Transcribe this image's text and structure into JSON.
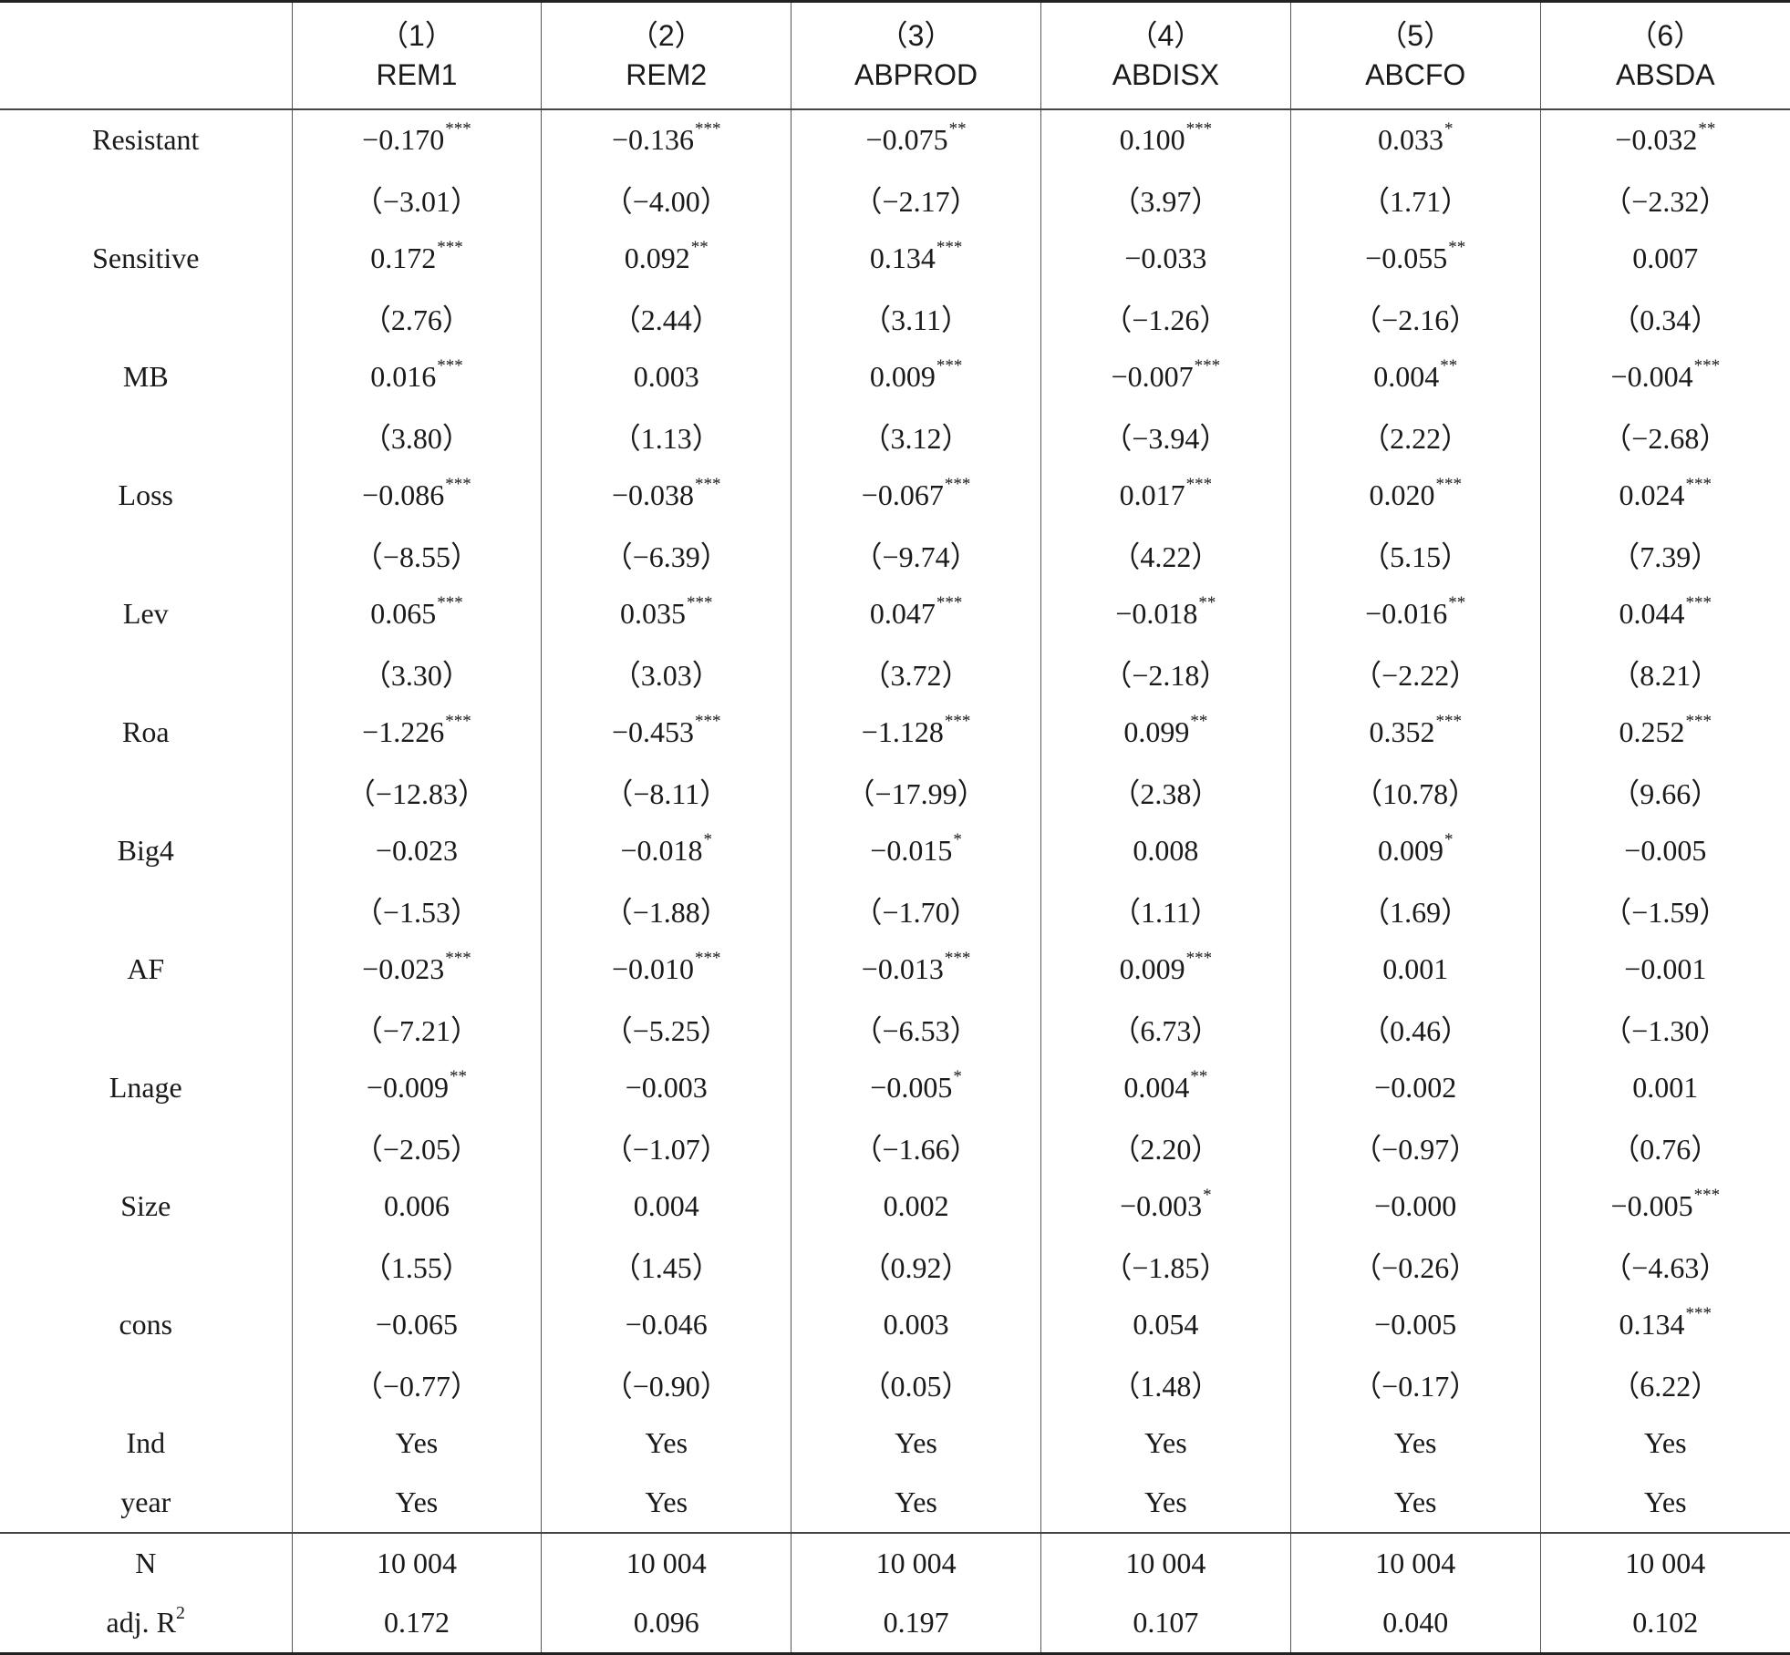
{
  "columns": [
    {
      "number": "（1）",
      "name": "REM1"
    },
    {
      "number": "（2）",
      "name": "REM2"
    },
    {
      "number": "（3）",
      "name": "ABPROD"
    },
    {
      "number": "（4）",
      "name": "ABDISX"
    },
    {
      "number": "（5）",
      "name": "ABCFO"
    },
    {
      "number": "（6）",
      "name": "ABSDA"
    }
  ],
  "rows": [
    {
      "label": "Resistant",
      "values": [
        {
          "v": "−0.170",
          "s": "***"
        },
        {
          "v": "−0.136",
          "s": "***"
        },
        {
          "v": "−0.075",
          "s": "**"
        },
        {
          "v": "0.100",
          "s": "***"
        },
        {
          "v": "0.033",
          "s": "*"
        },
        {
          "v": "−0.032",
          "s": "**"
        }
      ]
    },
    {
      "label": "",
      "values": [
        {
          "v": "（−3.01）"
        },
        {
          "v": "（−4.00）"
        },
        {
          "v": "（−2.17）"
        },
        {
          "v": "（3.97）"
        },
        {
          "v": "（1.71）"
        },
        {
          "v": "（−2.32）"
        }
      ]
    },
    {
      "label": "Sensitive",
      "values": [
        {
          "v": "0.172",
          "s": "***"
        },
        {
          "v": "0.092",
          "s": "**"
        },
        {
          "v": "0.134",
          "s": "***"
        },
        {
          "v": "−0.033"
        },
        {
          "v": "−0.055",
          "s": "**"
        },
        {
          "v": "0.007"
        }
      ]
    },
    {
      "label": "",
      "values": [
        {
          "v": "（2.76）"
        },
        {
          "v": "（2.44）"
        },
        {
          "v": "（3.11）"
        },
        {
          "v": "（−1.26）"
        },
        {
          "v": "（−2.16）"
        },
        {
          "v": "（0.34）"
        }
      ]
    },
    {
      "label": "MB",
      "values": [
        {
          "v": "0.016",
          "s": "***"
        },
        {
          "v": "0.003"
        },
        {
          "v": "0.009",
          "s": "***"
        },
        {
          "v": "−0.007",
          "s": "***"
        },
        {
          "v": "0.004",
          "s": "**"
        },
        {
          "v": "−0.004",
          "s": "***"
        }
      ]
    },
    {
      "label": "",
      "values": [
        {
          "v": "（3.80）"
        },
        {
          "v": "（1.13）"
        },
        {
          "v": "（3.12）"
        },
        {
          "v": "（−3.94）"
        },
        {
          "v": "（2.22）"
        },
        {
          "v": "（−2.68）"
        }
      ]
    },
    {
      "label": "Loss",
      "values": [
        {
          "v": "−0.086",
          "s": "***"
        },
        {
          "v": "−0.038",
          "s": "***"
        },
        {
          "v": "−0.067",
          "s": "***"
        },
        {
          "v": "0.017",
          "s": "***"
        },
        {
          "v": "0.020",
          "s": "***"
        },
        {
          "v": "0.024",
          "s": "***"
        }
      ]
    },
    {
      "label": "",
      "values": [
        {
          "v": "（−8.55）"
        },
        {
          "v": "（−6.39）"
        },
        {
          "v": "（−9.74）"
        },
        {
          "v": "（4.22）"
        },
        {
          "v": "（5.15）"
        },
        {
          "v": "（7.39）"
        }
      ]
    },
    {
      "label": "Lev",
      "values": [
        {
          "v": "0.065",
          "s": "***"
        },
        {
          "v": "0.035",
          "s": "***"
        },
        {
          "v": "0.047",
          "s": "***"
        },
        {
          "v": "−0.018",
          "s": "**"
        },
        {
          "v": "−0.016",
          "s": "**"
        },
        {
          "v": "0.044",
          "s": "***"
        }
      ]
    },
    {
      "label": "",
      "values": [
        {
          "v": "（3.30）"
        },
        {
          "v": "（3.03）"
        },
        {
          "v": "（3.72）"
        },
        {
          "v": "（−2.18）"
        },
        {
          "v": "（−2.22）"
        },
        {
          "v": "（8.21）"
        }
      ]
    },
    {
      "label": "Roa",
      "values": [
        {
          "v": "−1.226",
          "s": "***"
        },
        {
          "v": "−0.453",
          "s": "***"
        },
        {
          "v": "−1.128",
          "s": "***"
        },
        {
          "v": "0.099",
          "s": "**"
        },
        {
          "v": "0.352",
          "s": "***"
        },
        {
          "v": "0.252",
          "s": "***"
        }
      ]
    },
    {
      "label": "",
      "values": [
        {
          "v": "（−12.83）"
        },
        {
          "v": "（−8.11）"
        },
        {
          "v": "（−17.99）"
        },
        {
          "v": "（2.38）"
        },
        {
          "v": "（10.78）"
        },
        {
          "v": "（9.66）"
        }
      ]
    },
    {
      "label": "Big4",
      "values": [
        {
          "v": "−0.023"
        },
        {
          "v": "−0.018",
          "s": "*"
        },
        {
          "v": "−0.015",
          "s": "*"
        },
        {
          "v": "0.008"
        },
        {
          "v": "0.009",
          "s": "*"
        },
        {
          "v": "−0.005"
        }
      ]
    },
    {
      "label": "",
      "values": [
        {
          "v": "（−1.53）"
        },
        {
          "v": "（−1.88）"
        },
        {
          "v": "（−1.70）"
        },
        {
          "v": "（1.11）"
        },
        {
          "v": "（1.69）"
        },
        {
          "v": "（−1.59）"
        }
      ]
    },
    {
      "label": "AF",
      "values": [
        {
          "v": "−0.023",
          "s": "***"
        },
        {
          "v": "−0.010",
          "s": "***"
        },
        {
          "v": "−0.013",
          "s": "***"
        },
        {
          "v": "0.009",
          "s": "***"
        },
        {
          "v": "0.001"
        },
        {
          "v": "−0.001"
        }
      ]
    },
    {
      "label": "",
      "values": [
        {
          "v": "（−7.21）"
        },
        {
          "v": "（−5.25）"
        },
        {
          "v": "（−6.53）"
        },
        {
          "v": "（6.73）"
        },
        {
          "v": "（0.46）"
        },
        {
          "v": "（−1.30）"
        }
      ]
    },
    {
      "label": "Lnage",
      "values": [
        {
          "v": "−0.009",
          "s": "**"
        },
        {
          "v": "−0.003"
        },
        {
          "v": "−0.005",
          "s": "*"
        },
        {
          "v": "0.004",
          "s": "**"
        },
        {
          "v": "−0.002"
        },
        {
          "v": "0.001"
        }
      ]
    },
    {
      "label": "",
      "values": [
        {
          "v": "（−2.05）"
        },
        {
          "v": "（−1.07）"
        },
        {
          "v": "（−1.66）"
        },
        {
          "v": "（2.20）"
        },
        {
          "v": "（−0.97）"
        },
        {
          "v": "（0.76）"
        }
      ]
    },
    {
      "label": "Size",
      "values": [
        {
          "v": "0.006"
        },
        {
          "v": "0.004"
        },
        {
          "v": "0.002"
        },
        {
          "v": "−0.003",
          "s": "*"
        },
        {
          "v": "−0.000"
        },
        {
          "v": "−0.005",
          "s": "***"
        }
      ]
    },
    {
      "label": "",
      "values": [
        {
          "v": "（1.55）"
        },
        {
          "v": "（1.45）"
        },
        {
          "v": "（0.92）"
        },
        {
          "v": "（−1.85）"
        },
        {
          "v": "（−0.26）"
        },
        {
          "v": "（−4.63）"
        }
      ]
    },
    {
      "label": "cons",
      "values": [
        {
          "v": "−0.065"
        },
        {
          "v": "−0.046"
        },
        {
          "v": "0.003"
        },
        {
          "v": "0.054"
        },
        {
          "v": "−0.005"
        },
        {
          "v": "0.134",
          "s": "***"
        }
      ]
    },
    {
      "label": "",
      "values": [
        {
          "v": "（−0.77）"
        },
        {
          "v": "（−0.90）"
        },
        {
          "v": "（0.05）"
        },
        {
          "v": "（1.48）"
        },
        {
          "v": "（−0.17）"
        },
        {
          "v": "（6.22）"
        }
      ]
    },
    {
      "label": "Ind",
      "values": [
        {
          "v": "Yes"
        },
        {
          "v": "Yes"
        },
        {
          "v": "Yes"
        },
        {
          "v": "Yes"
        },
        {
          "v": "Yes"
        },
        {
          "v": "Yes"
        }
      ]
    },
    {
      "label": "year",
      "values": [
        {
          "v": "Yes"
        },
        {
          "v": "Yes"
        },
        {
          "v": "Yes"
        },
        {
          "v": "Yes"
        },
        {
          "v": "Yes"
        },
        {
          "v": "Yes"
        }
      ]
    }
  ],
  "stats": [
    {
      "label": "N",
      "values": [
        {
          "v": "10 004"
        },
        {
          "v": "10 004"
        },
        {
          "v": "10 004"
        },
        {
          "v": "10 004"
        },
        {
          "v": "10 004"
        },
        {
          "v": "10 004"
        }
      ]
    },
    {
      "label": "adj. R",
      "label_sup": "2",
      "values": [
        {
          "v": "0.172"
        },
        {
          "v": "0.096"
        },
        {
          "v": "0.197"
        },
        {
          "v": "0.107"
        },
        {
          "v": "0.040"
        },
        {
          "v": "0.102"
        }
      ]
    }
  ]
}
